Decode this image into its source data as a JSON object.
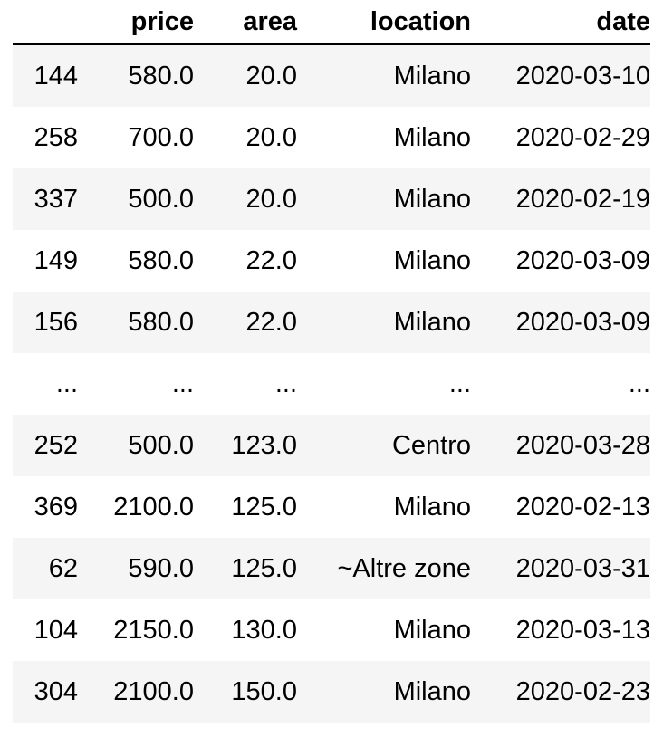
{
  "table": {
    "columns": [
      "",
      "price",
      "area",
      "location",
      "date"
    ],
    "rows": [
      [
        "144",
        "580.0",
        "20.0",
        "Milano",
        "2020-03-10"
      ],
      [
        "258",
        "700.0",
        "20.0",
        "Milano",
        "2020-02-29"
      ],
      [
        "337",
        "500.0",
        "20.0",
        "Milano",
        "2020-02-19"
      ],
      [
        "149",
        "580.0",
        "22.0",
        "Milano",
        "2020-03-09"
      ],
      [
        "156",
        "580.0",
        "22.0",
        "Milano",
        "2020-03-09"
      ],
      [
        "...",
        "...",
        "...",
        "...",
        "..."
      ],
      [
        "252",
        "500.0",
        "123.0",
        "Centro",
        "2020-03-28"
      ],
      [
        "369",
        "2100.0",
        "125.0",
        "Milano",
        "2020-02-13"
      ],
      [
        "62",
        "590.0",
        "125.0",
        "~Altre zone",
        "2020-03-31"
      ],
      [
        "104",
        "2150.0",
        "130.0",
        "Milano",
        "2020-03-13"
      ],
      [
        "304",
        "2100.0",
        "150.0",
        "Milano",
        "2020-02-23"
      ]
    ]
  }
}
